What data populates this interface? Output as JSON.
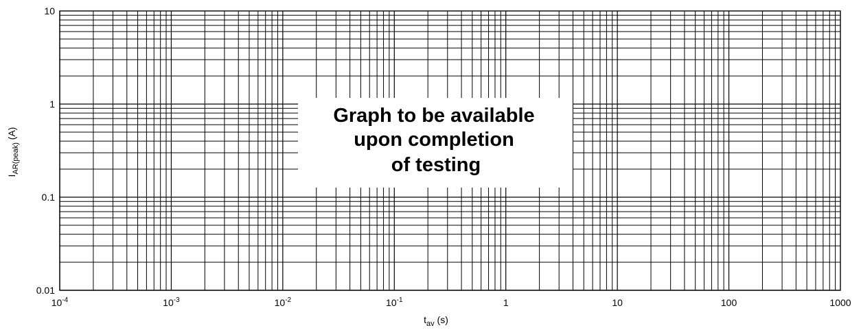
{
  "chart_data": {
    "type": "line",
    "title": "",
    "x_scale": "log",
    "y_scale": "log",
    "xlim": [
      0.0001,
      1000
    ],
    "ylim": [
      0.01,
      10
    ],
    "grid": true,
    "x_ticks": [
      {
        "value": 0.0001,
        "base": "10",
        "exp": "-4"
      },
      {
        "value": 0.001,
        "base": "10",
        "exp": "-3"
      },
      {
        "value": 0.01,
        "base": "10",
        "exp": "-2"
      },
      {
        "value": 0.1,
        "base": "10",
        "exp": "-1"
      },
      {
        "value": 1,
        "base": "1",
        "exp": ""
      },
      {
        "value": 10,
        "base": "10",
        "exp": ""
      },
      {
        "value": 100,
        "base": "100",
        "exp": ""
      },
      {
        "value": 1000,
        "base": "1000",
        "exp": ""
      }
    ],
    "y_ticks": [
      {
        "value": 10,
        "label": "10"
      },
      {
        "value": 1,
        "label": "1"
      },
      {
        "value": 0.1,
        "label": "0.1"
      },
      {
        "value": 0.01,
        "label": "0.01"
      }
    ],
    "xlabel": {
      "main": "t",
      "sub": "av",
      "unit": " (s)"
    },
    "ylabel": {
      "main": "I",
      "sub": "AR(peak)",
      "unit": " (A)"
    },
    "series": [],
    "annotation": [
      "Graph to be available",
      "upon completion",
      "of testing"
    ]
  }
}
